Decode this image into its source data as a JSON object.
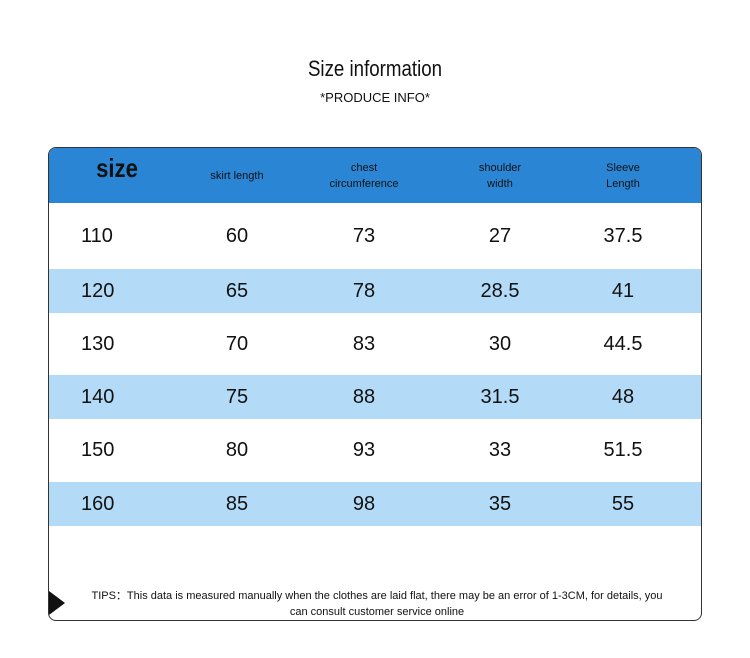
{
  "header": {
    "title": "Size information",
    "subtitle": "*PRODUCE INFO*"
  },
  "table": {
    "columns": [
      {
        "lines": [
          "size"
        ]
      },
      {
        "lines": [
          "skirt length"
        ]
      },
      {
        "lines": [
          "chest",
          "circumference"
        ]
      },
      {
        "lines": [
          "shoulder",
          "width"
        ]
      },
      {
        "lines": [
          "Sleeve",
          "Length"
        ]
      }
    ],
    "rows": [
      [
        110,
        60,
        73,
        27,
        37.5
      ],
      [
        120,
        65,
        78,
        28.5,
        41
      ],
      [
        130,
        70,
        83,
        30,
        44.5
      ],
      [
        140,
        75,
        88,
        31.5,
        48
      ],
      [
        150,
        80,
        93,
        33,
        51.5
      ],
      [
        160,
        85,
        98,
        35,
        55
      ]
    ]
  },
  "tips": "TIPS：This data is measured manually when the clothes are laid flat, there may be an error of 1-3CM, for details, you can consult customer service online"
}
